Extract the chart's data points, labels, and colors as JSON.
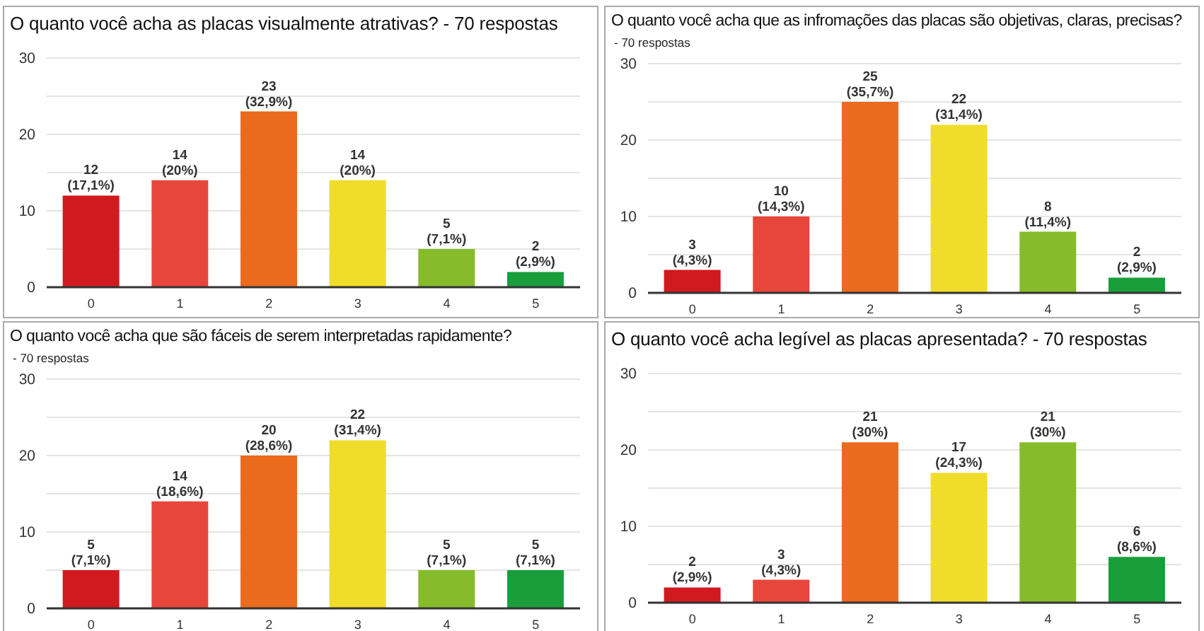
{
  "chart_data": [
    {
      "type": "bar",
      "title": "O quanto você acha as placas visualmente atrativas? - 70 respostas",
      "categories": [
        "0",
        "1",
        "2",
        "3",
        "4",
        "5"
      ],
      "values": [
        12,
        14,
        23,
        14,
        5,
        2
      ],
      "colors": [
        "#d01a1f",
        "#e8463b",
        "#ea6a1e",
        "#f0dc2a",
        "#86bb2b",
        "#1a9e3c"
      ],
      "value_labels": [
        "12 (17,1%)",
        "14 (20%)",
        "23 (32,9%)",
        "14 (20%)",
        "5 (7,1%)",
        "2 (2,9%)"
      ],
      "ylim": [
        0,
        30
      ],
      "yticks": [
        0,
        {
          "value": 5,
          "label": null
        },
        10,
        {
          "value": 15,
          "label": null
        },
        20,
        {
          "value": 25,
          "label": null
        },
        30
      ],
      "grid": "y",
      "legend": false
    },
    {
      "type": "bar",
      "title": "O quanto você acha que as infromações das placas são objetivas, claras, precisas?",
      "subtitle": "- 70 respostas",
      "categories": [
        "0",
        "1",
        "2",
        "3",
        "4",
        "5"
      ],
      "values": [
        3,
        10,
        25,
        22,
        8,
        2
      ],
      "colors": [
        "#d01a1f",
        "#e8463b",
        "#ea6a1e",
        "#f0dc2a",
        "#86bb2b",
        "#1a9e3c"
      ],
      "value_labels": [
        "3 (4,3%)",
        "10 (14,3%)",
        "25 (35,7%)",
        "22 (31,4%)",
        "8 (11,4%)",
        "2 (2,9%)"
      ],
      "ylim": [
        0,
        30
      ],
      "yticks": [
        0,
        {
          "value": 5,
          "label": null
        },
        10,
        {
          "value": 15,
          "label": null
        },
        20,
        {
          "value": 25,
          "label": null
        },
        30
      ],
      "grid": "y",
      "legend": false
    },
    {
      "type": "bar",
      "title": "O quanto você acha que são fáceis de serem interpretadas rapidamente?",
      "subtitle": "- 70 respostas",
      "categories": [
        "0",
        "1",
        "2",
        "3",
        "4",
        "5"
      ],
      "values": [
        5,
        14,
        20,
        22,
        5,
        5
      ],
      "colors": [
        "#d01a1f",
        "#e8463b",
        "#ea6a1e",
        "#f0dc2a",
        "#86bb2b",
        "#1a9e3c"
      ],
      "value_labels": [
        "5 (7,1%)",
        "14 (18,6%)",
        "20 (28,6%)",
        "22 (31,4%)",
        "5 (7,1%)",
        "5 (7,1%)"
      ],
      "ylim": [
        0,
        30
      ],
      "yticks": [
        0,
        {
          "value": 5,
          "label": null
        },
        10,
        {
          "value": 15,
          "label": null
        },
        20,
        {
          "value": 25,
          "label": null
        },
        30
      ],
      "grid": "y",
      "legend": false
    },
    {
      "type": "bar",
      "title": "O quanto você acha legível as placas apresentada? - 70 respostas",
      "categories": [
        "0",
        "1",
        "2",
        "3",
        "4",
        "5"
      ],
      "values": [
        2,
        3,
        21,
        17,
        21,
        6
      ],
      "colors": [
        "#d01a1f",
        "#e8463b",
        "#ea6a1e",
        "#f0dc2a",
        "#86bb2b",
        "#1a9e3c"
      ],
      "value_labels": [
        "2 (2,9%)",
        "3 (4,3%)",
        "21 (30%)",
        "17 (24,3%)",
        "21 (30%)",
        "6 (8,6%)"
      ],
      "ylim": [
        0,
        30
      ],
      "yticks": [
        0,
        {
          "value": 5,
          "label": null
        },
        10,
        {
          "value": 15,
          "label": null
        },
        20,
        {
          "value": 25,
          "label": null
        },
        30
      ],
      "grid": "y",
      "legend": false
    }
  ]
}
